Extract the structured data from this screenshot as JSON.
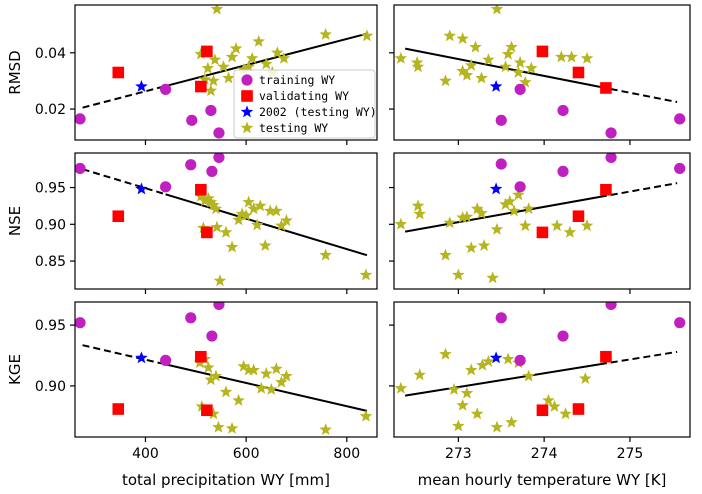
{
  "chart_data": {
    "type": "scatter",
    "layout": "3x2 grid",
    "legend": {
      "location": "upper-right of top-left panel",
      "entries": [
        {
          "key": "training",
          "label": "training WY",
          "color": "#c020c0",
          "marker": "circle"
        },
        {
          "key": "validating",
          "label": "validating WY",
          "color": "#ff0000",
          "marker": "square"
        },
        {
          "key": "y2002",
          "label": "2002 (testing WY)",
          "color": "#0000ff",
          "marker": "star"
        },
        {
          "key": "testing",
          "label": "testing WY",
          "color": "#b5b520",
          "marker": "star"
        }
      ]
    },
    "columns": [
      {
        "xlabel": "total precipitation WY [mm]",
        "xlim": [
          260,
          860
        ],
        "xticks": [
          400,
          600,
          800
        ]
      },
      {
        "xlabel": "mean hourly temperature WY [K]",
        "xlim": [
          272.25,
          275.7
        ],
        "xticks": [
          273,
          274,
          275
        ]
      }
    ],
    "rows": [
      {
        "ylabel": "RMSD",
        "ylim": [
          0.009,
          0.057
        ],
        "yticks": [
          0.02,
          0.04
        ],
        "ytick_labels": [
          "0.02",
          "0.04"
        ]
      },
      {
        "ylabel": "NSE",
        "ylim": [
          0.812,
          0.997
        ],
        "yticks": [
          0.85,
          0.9,
          0.95
        ],
        "ytick_labels": [
          "0.85",
          "0.90",
          "0.95"
        ]
      },
      {
        "ylabel": "KGE",
        "ylim": [
          0.858,
          0.969
        ],
        "yticks": [
          0.9,
          0.95
        ],
        "ytick_labels": [
          "0.90",
          "0.95"
        ]
      }
    ],
    "panels": [
      {
        "row": 0,
        "col": 0,
        "trend": {
          "x": [
            275,
            840
          ],
          "y": [
            0.0205,
            0.0468
          ],
          "dash_until": 440
        },
        "series": {
          "training": [
            [
              270,
              0.0165
            ],
            [
              440,
              0.027
            ],
            [
              492,
              0.016
            ],
            [
              530,
              0.0195
            ],
            [
              546,
              0.0115
            ]
          ],
          "validating": [
            [
              346,
              0.033
            ],
            [
              510,
              0.028
            ],
            [
              522,
              0.0405
            ]
          ],
          "y2002": [
            [
              392,
              0.028
            ]
          ],
          "testing": [
            [
              510,
              0.0395
            ],
            [
              518,
              0.0305
            ],
            [
              524,
              0.0345
            ],
            [
              530,
              0.0265
            ],
            [
              535,
              0.03
            ],
            [
              538,
              0.0375
            ],
            [
              542,
              0.0555
            ],
            [
              555,
              0.035
            ],
            [
              565,
              0.031
            ],
            [
              572,
              0.0385
            ],
            [
              580,
              0.0415
            ],
            [
              595,
              0.034
            ],
            [
              605,
              0.035
            ],
            [
              612,
              0.038
            ],
            [
              625,
              0.044
            ],
            [
              640,
              0.036
            ],
            [
              652,
              0.033
            ],
            [
              662,
              0.04
            ],
            [
              675,
              0.038
            ],
            [
              758,
              0.0465
            ],
            [
              840,
              0.046
            ]
          ]
        }
      },
      {
        "row": 0,
        "col": 1,
        "trend": {
          "x": [
            272.38,
            275.55
          ],
          "y": [
            0.0415,
            0.0225
          ],
          "dash_from": 274.65
        },
        "series": {
          "training": [
            [
              273.5,
              0.016
            ],
            [
              273.72,
              0.027
            ],
            [
              274.22,
              0.0195
            ],
            [
              274.78,
              0.0115
            ],
            [
              275.58,
              0.0165
            ]
          ],
          "validating": [
            [
              273.98,
              0.0405
            ],
            [
              274.4,
              0.033
            ],
            [
              274.72,
              0.0275
            ]
          ],
          "y2002": [
            [
              273.44,
              0.028
            ]
          ],
          "testing": [
            [
              272.33,
              0.038
            ],
            [
              272.52,
              0.0365
            ],
            [
              272.53,
              0.035
            ],
            [
              272.85,
              0.03
            ],
            [
              272.9,
              0.046
            ],
            [
              273.05,
              0.045
            ],
            [
              273.05,
              0.0335
            ],
            [
              273.1,
              0.032
            ],
            [
              273.15,
              0.0355
            ],
            [
              273.2,
              0.042
            ],
            [
              273.27,
              0.031
            ],
            [
              273.35,
              0.0375
            ],
            [
              273.45,
              0.0555
            ],
            [
              273.55,
              0.035
            ],
            [
              273.58,
              0.0395
            ],
            [
              273.62,
              0.042
            ],
            [
              273.7,
              0.033
            ],
            [
              273.72,
              0.0365
            ],
            [
              273.78,
              0.0295
            ],
            [
              273.85,
              0.0345
            ],
            [
              274.2,
              0.0385
            ],
            [
              274.32,
              0.0385
            ],
            [
              274.5,
              0.038
            ]
          ]
        }
      },
      {
        "row": 1,
        "col": 0,
        "trend": {
          "x": [
            275,
            840
          ],
          "y": [
            0.975,
            0.858
          ],
          "dash_until": 440
        },
        "series": {
          "training": [
            [
              270,
              0.976
            ],
            [
              440,
              0.951
            ],
            [
              490,
              0.981
            ],
            [
              532,
              0.972
            ],
            [
              546,
              0.991
            ]
          ],
          "validating": [
            [
              346,
              0.911
            ],
            [
              510,
              0.947
            ],
            [
              522,
              0.889
            ]
          ],
          "y2002": [
            [
              392,
              0.948
            ]
          ],
          "testing": [
            [
              510,
              0.938
            ],
            [
              515,
              0.895
            ],
            [
              518,
              0.932
            ],
            [
              525,
              0.935
            ],
            [
              530,
              0.93
            ],
            [
              535,
              0.926
            ],
            [
              540,
              0.921
            ],
            [
              542,
              0.896
            ],
            [
              548,
              0.823
            ],
            [
              560,
              0.889
            ],
            [
              572,
              0.869
            ],
            [
              585,
              0.906
            ],
            [
              592,
              0.914
            ],
            [
              600,
              0.912
            ],
            [
              605,
              0.93
            ],
            [
              615,
              0.921
            ],
            [
              622,
              0.899
            ],
            [
              628,
              0.925
            ],
            [
              638,
              0.871
            ],
            [
              648,
              0.918
            ],
            [
              660,
              0.918
            ],
            [
              670,
              0.898
            ],
            [
              680,
              0.905
            ],
            [
              758,
              0.858
            ],
            [
              838,
              0.831
            ]
          ]
        }
      },
      {
        "row": 1,
        "col": 1,
        "trend": {
          "x": [
            272.38,
            275.55
          ],
          "y": [
            0.89,
            0.956
          ],
          "dash_from": 274.65
        },
        "series": {
          "training": [
            [
              273.5,
              0.982
            ],
            [
              273.72,
              0.951
            ],
            [
              274.22,
              0.972
            ],
            [
              274.78,
              0.991
            ],
            [
              275.58,
              0.976
            ]
          ],
          "validating": [
            [
              273.98,
              0.889
            ],
            [
              274.4,
              0.911
            ],
            [
              274.72,
              0.947
            ]
          ],
          "y2002": [
            [
              273.44,
              0.948
            ]
          ],
          "testing": [
            [
              272.33,
              0.9
            ],
            [
              272.53,
              0.925
            ],
            [
              272.55,
              0.914
            ],
            [
              272.85,
              0.858
            ],
            [
              272.9,
              0.902
            ],
            [
              273.0,
              0.831
            ],
            [
              273.05,
              0.909
            ],
            [
              273.1,
              0.91
            ],
            [
              273.15,
              0.868
            ],
            [
              273.22,
              0.921
            ],
            [
              273.27,
              0.915
            ],
            [
              273.3,
              0.871
            ],
            [
              273.4,
              0.827
            ],
            [
              273.45,
              0.893
            ],
            [
              273.55,
              0.927
            ],
            [
              273.6,
              0.931
            ],
            [
              273.65,
              0.918
            ],
            [
              273.7,
              0.94
            ],
            [
              273.78,
              0.898
            ],
            [
              273.82,
              0.921
            ],
            [
              274.15,
              0.898
            ],
            [
              274.3,
              0.889
            ],
            [
              274.5,
              0.898
            ]
          ]
        }
      },
      {
        "row": 2,
        "col": 0,
        "trend": {
          "x": [
            275,
            840
          ],
          "y": [
            0.9335,
            0.8795
          ],
          "dash_until": 440
        },
        "series": {
          "training": [
            [
              270,
              0.952
            ],
            [
              440,
              0.921
            ],
            [
              490,
              0.956
            ],
            [
              532,
              0.941
            ],
            [
              546,
              0.967
            ]
          ],
          "validating": [
            [
              346,
              0.881
            ],
            [
              510,
              0.924
            ],
            [
              522,
              0.88
            ]
          ],
          "y2002": [
            [
              392,
              0.923
            ]
          ],
          "testing": [
            [
              508,
              0.919
            ],
            [
              512,
              0.883
            ],
            [
              518,
              0.922
            ],
            [
              525,
              0.915
            ],
            [
              530,
              0.905
            ],
            [
              535,
              0.877
            ],
            [
              540,
              0.908
            ],
            [
              545,
              0.866
            ],
            [
              560,
              0.895
            ],
            [
              572,
              0.865
            ],
            [
              585,
              0.888
            ],
            [
              595,
              0.916
            ],
            [
              605,
              0.913
            ],
            [
              615,
              0.913
            ],
            [
              630,
              0.898
            ],
            [
              640,
              0.91
            ],
            [
              650,
              0.897
            ],
            [
              660,
              0.914
            ],
            [
              670,
              0.903
            ],
            [
              680,
              0.908
            ],
            [
              758,
              0.864
            ],
            [
              838,
              0.875
            ]
          ]
        }
      },
      {
        "row": 2,
        "col": 1,
        "trend": {
          "x": [
            272.38,
            275.55
          ],
          "y": [
            0.892,
            0.928
          ],
          "dash_from": 274.65
        },
        "series": {
          "training": [
            [
              273.5,
              0.956
            ],
            [
              273.72,
              0.921
            ],
            [
              274.22,
              0.941
            ],
            [
              274.78,
              0.967
            ],
            [
              275.58,
              0.952
            ]
          ],
          "validating": [
            [
              273.98,
              0.88
            ],
            [
              274.4,
              0.881
            ],
            [
              274.72,
              0.924
            ]
          ],
          "y2002": [
            [
              273.44,
              0.923
            ]
          ],
          "testing": [
            [
              272.33,
              0.898
            ],
            [
              272.55,
              0.909
            ],
            [
              272.85,
              0.926
            ],
            [
              272.95,
              0.897
            ],
            [
              273.0,
              0.867
            ],
            [
              273.05,
              0.884
            ],
            [
              273.1,
              0.894
            ],
            [
              273.15,
              0.913
            ],
            [
              273.22,
              0.877
            ],
            [
              273.28,
              0.917
            ],
            [
              273.35,
              0.92
            ],
            [
              273.45,
              0.866
            ],
            [
              273.58,
              0.922
            ],
            [
              273.62,
              0.87
            ],
            [
              273.7,
              0.919
            ],
            [
              273.82,
              0.908
            ],
            [
              274.05,
              0.888
            ],
            [
              274.12,
              0.883
            ],
            [
              274.25,
              0.877
            ],
            [
              274.48,
              0.906
            ]
          ]
        }
      }
    ]
  }
}
